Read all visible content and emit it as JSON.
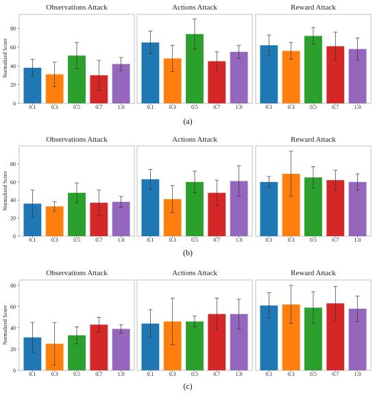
{
  "figure": {
    "ylabel": "Normalized Score",
    "colors": [
      "#1f77b4",
      "#ff7f0e",
      "#2ca02c",
      "#d62728",
      "#9467bd"
    ],
    "captions": [
      "(a)",
      "(b)",
      "(c)"
    ]
  },
  "chart_data": [
    {
      "type": "bar",
      "row": 0,
      "col": 0,
      "title": "Observations Attack",
      "categories": [
        "0.1",
        "0.3",
        "0.5",
        "0.7",
        "1.0"
      ],
      "values": [
        38,
        31,
        51,
        30,
        42
      ],
      "errors": [
        9,
        13,
        14,
        16,
        7
      ],
      "ylim": [
        0,
        95
      ],
      "yticks": [
        "0",
        "20",
        "40",
        "60",
        "80"
      ]
    },
    {
      "type": "bar",
      "row": 0,
      "col": 1,
      "title": "Actions Attack",
      "categories": [
        "0.1",
        "0.3",
        "0.5",
        "0.7",
        "1.0"
      ],
      "values": [
        65,
        48,
        74,
        45,
        55
      ],
      "errors": [
        12,
        14,
        16,
        10,
        7
      ],
      "ylim": [
        0,
        95
      ]
    },
    {
      "type": "bar",
      "row": 0,
      "col": 2,
      "title": "Reward Attack",
      "categories": [
        "0.1",
        "0.3",
        "0.5",
        "0.7",
        "1.0"
      ],
      "values": [
        62,
        56,
        72,
        61,
        58
      ],
      "errors": [
        11,
        9,
        9,
        15,
        12
      ],
      "ylim": [
        0,
        95
      ]
    },
    {
      "type": "bar",
      "row": 1,
      "col": 0,
      "title": "Observations Attack",
      "categories": [
        "0.1",
        "0.3",
        "0.5",
        "0.7",
        "1.0"
      ],
      "values": [
        36,
        33,
        48,
        37,
        38
      ],
      "errors": [
        15,
        5,
        11,
        14,
        6
      ],
      "ylim": [
        0,
        100
      ],
      "yticks": [
        "0",
        "20",
        "40",
        "60",
        "80"
      ]
    },
    {
      "type": "bar",
      "row": 1,
      "col": 1,
      "title": "Actions Attack",
      "categories": [
        "0.1",
        "0.3",
        "0.5",
        "0.7",
        "1.0"
      ],
      "values": [
        63,
        41,
        60,
        48,
        61
      ],
      "errors": [
        11,
        15,
        12,
        14,
        17
      ],
      "ylim": [
        0,
        100
      ]
    },
    {
      "type": "bar",
      "row": 1,
      "col": 2,
      "title": "Reward Attack",
      "categories": [
        "0.1",
        "0.3",
        "0.5",
        "0.7",
        "1.0"
      ],
      "values": [
        60,
        69,
        65,
        62,
        60
      ],
      "errors": [
        6,
        25,
        12,
        11,
        9
      ],
      "ylim": [
        0,
        100
      ]
    },
    {
      "type": "bar",
      "row": 2,
      "col": 0,
      "title": "Observations Attack",
      "categories": [
        "0.1",
        "0.3",
        "0.5",
        "0.7",
        "1.0"
      ],
      "values": [
        31,
        25,
        33,
        43,
        39
      ],
      "errors": [
        14,
        20,
        8,
        7,
        4
      ],
      "ylim": [
        0,
        85
      ],
      "yticks": [
        "0",
        "20",
        "40",
        "60",
        "80"
      ]
    },
    {
      "type": "bar",
      "row": 2,
      "col": 1,
      "title": "Actions Attack",
      "categories": [
        "0.1",
        "0.3",
        "0.5",
        "0.7",
        "1.0"
      ],
      "values": [
        44,
        46,
        46,
        53,
        53
      ],
      "errors": [
        13,
        22,
        5,
        15,
        14
      ],
      "ylim": [
        0,
        85
      ]
    },
    {
      "type": "bar",
      "row": 2,
      "col": 2,
      "title": "Reward Attack",
      "categories": [
        "0.1",
        "0.3",
        "0.5",
        "0.7",
        "1.0"
      ],
      "values": [
        61,
        62,
        59,
        63,
        58
      ],
      "errors": [
        12,
        18,
        15,
        16,
        12
      ],
      "ylim": [
        0,
        85
      ]
    }
  ]
}
